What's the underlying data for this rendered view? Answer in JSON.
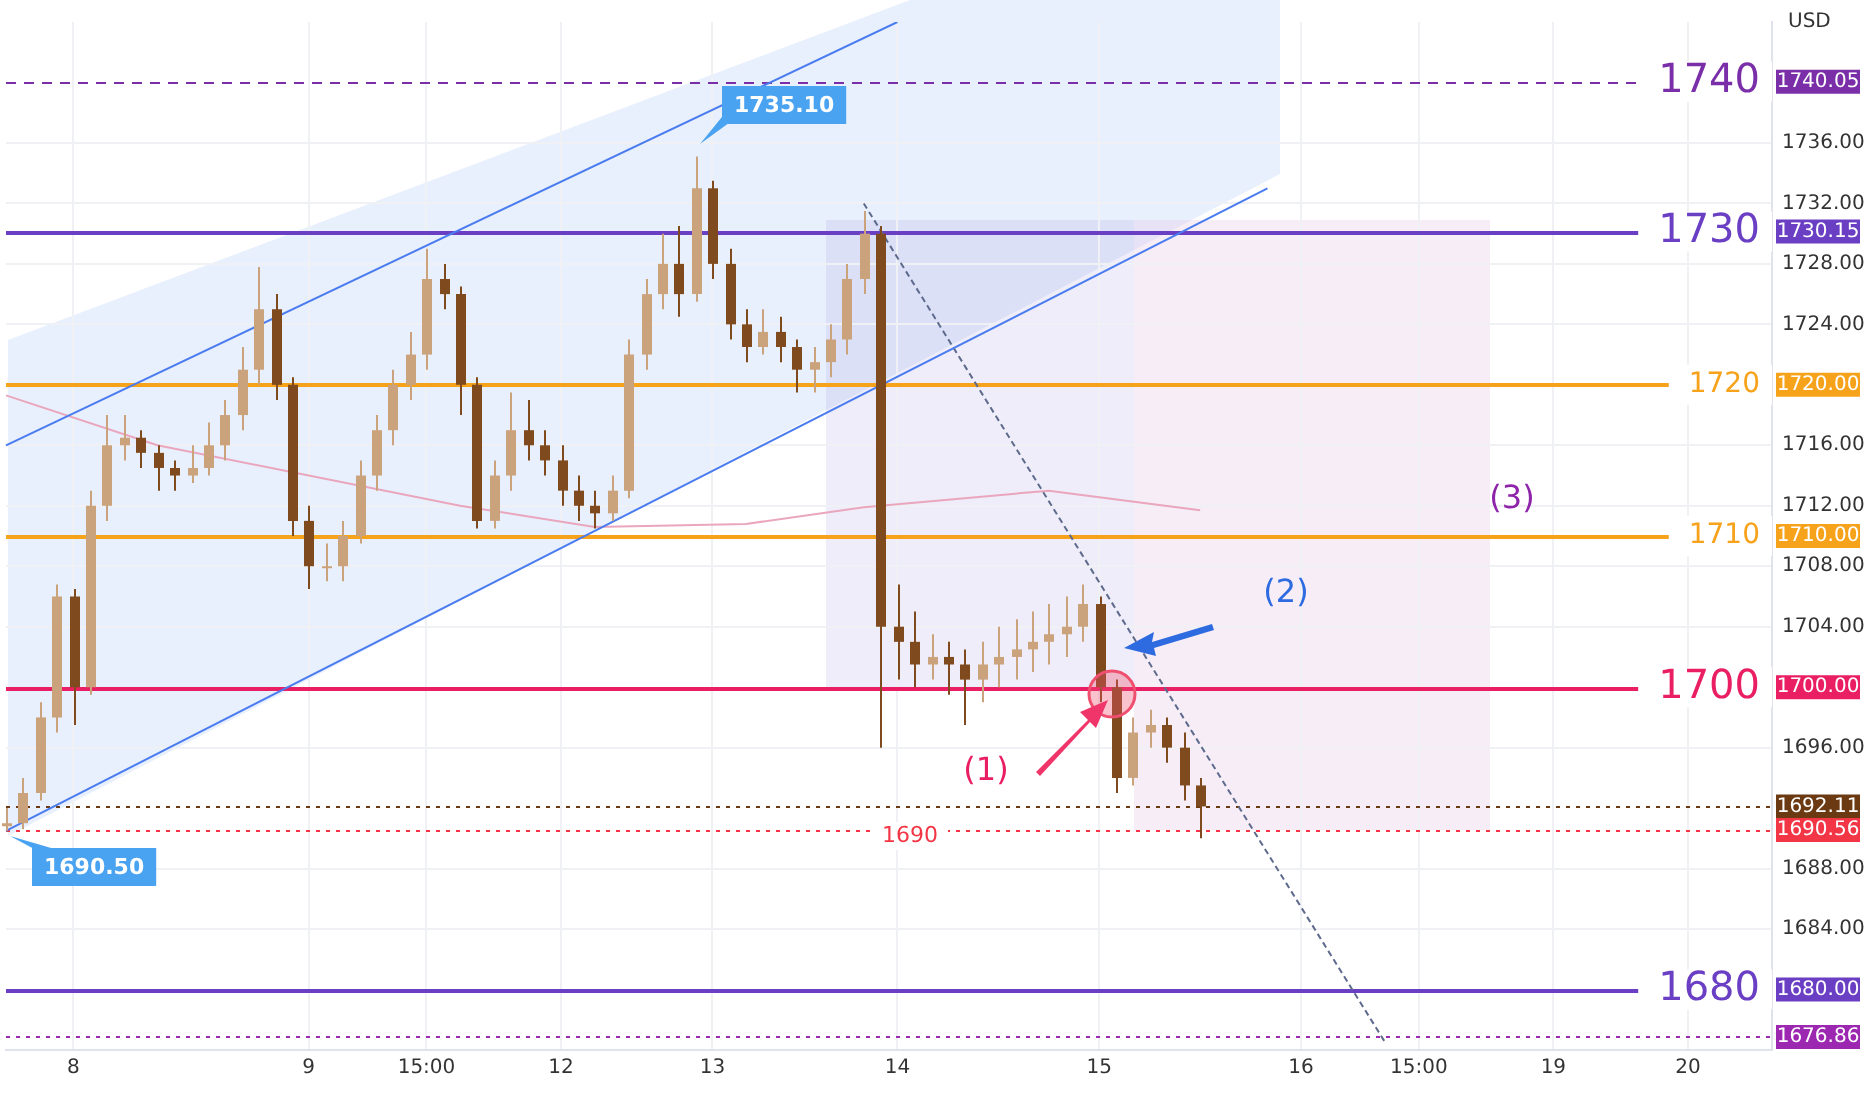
{
  "chart_data": {
    "type": "candlestick",
    "ylabel": "USD",
    "marker": "none",
    "grid": true,
    "colors": [
      "#caa27c",
      "#caa27c",
      "#caa27c",
      "#caa27c",
      "#7f4a1e",
      "#caa27c",
      "#caa27c",
      "#caa27c",
      "#7f4a1e",
      "#7f4a1e",
      "#7f4a1e",
      "#caa27c",
      "#caa27c",
      "#caa27c",
      "#caa27c",
      "#caa27c",
      "#7f4a1e",
      "#7f4a1e",
      "#7f4a1e",
      "#caa27c",
      "#caa27c",
      "#caa27c",
      "#caa27c",
      "#caa27c",
      "#caa27c",
      "#caa27c",
      "#7f4a1e",
      "#7f4a1e",
      "#7f4a1e",
      "#caa27c",
      "#caa27c",
      "#7f4a1e",
      "#7f4a1e",
      "#7f4a1e",
      "#7f4a1e",
      "#7f4a1e",
      "#caa27c",
      "#caa27c",
      "#caa27c",
      "#caa27c",
      "#7f4a1e",
      "#caa27c",
      "#7f4a1e",
      "#7f4a1e",
      "#7f4a1e",
      "#caa27c",
      "#7f4a1e",
      "#7f4a1e",
      "#caa27c",
      "#caa27c",
      "#caa27c",
      "#caa27c",
      "#7f4a1e",
      "#7f4a1e",
      "#7f4a1e",
      "#caa27c",
      "#7f4a1e",
      "#7f4a1e",
      "#caa27c",
      "#caa27c",
      "#caa27c",
      "#caa27c",
      "#caa27c",
      "#caa27c",
      "#caa27c",
      "#7f4a1e",
      "#7f4a1e",
      "#caa27c",
      "#caa27c",
      "#7f4a1e",
      "#7f4a1e",
      "#7f4a1e",
      null,
      null,
      null,
      null,
      null,
      null,
      null,
      null,
      null,
      null,
      null,
      null,
      null,
      null,
      null,
      null,
      null,
      null,
      null,
      null,
      null,
      null,
      null,
      null,
      null,
      null,
      null,
      null,
      null,
      null,
      null,
      null,
      null,
      null
    ],
    "categories": [
      null,
      null,
      null,
      null,
      "8",
      null,
      null,
      null,
      null,
      null,
      null,
      null,
      null,
      null,
      null,
      null,
      null,
      null,
      "9",
      null,
      null,
      null,
      null,
      null,
      null,
      "15:00",
      null,
      null,
      null,
      null,
      null,
      null,
      null,
      "12",
      null,
      null,
      null,
      null,
      null,
      null,
      null,
      null,
      "13",
      null,
      null,
      null,
      null,
      null,
      null,
      null,
      null,
      null,
      null,
      "14",
      null,
      null,
      null,
      null,
      null,
      null,
      null,
      null,
      null,
      null,
      null,
      "15",
      null,
      null,
      null,
      null,
      null,
      null,
      null,
      null,
      null,
      null,
      null,
      "16",
      null,
      null,
      null,
      null,
      null,
      null,
      "15:00",
      null,
      null,
      null,
      null,
      null,
      null,
      null,
      "19",
      null,
      null,
      null,
      null,
      null,
      null,
      null,
      "20",
      null,
      null,
      null,
      null,
      null
    ],
    "ohlc": [
      [
        1690.8,
        1692,
        1690.5,
        1691
      ],
      [
        1691,
        1694,
        1690.6,
        1693
      ],
      [
        1693,
        1699,
        1692.5,
        1698
      ],
      [
        1698,
        1706.8,
        1697,
        1706
      ],
      [
        1706,
        1706.5,
        1697.5,
        1700
      ],
      [
        1700,
        1713,
        1699.5,
        1712
      ],
      [
        1712,
        1718,
        1711,
        1716
      ],
      [
        1716,
        1718,
        1715,
        1716.5
      ],
      [
        1716.5,
        1717,
        1714.5,
        1715.5
      ],
      [
        1715.5,
        1716,
        1713,
        1714.5
      ],
      [
        1714.5,
        1715,
        1713,
        1714
      ],
      [
        1714,
        1716,
        1713.5,
        1714.5
      ],
      [
        1714.5,
        1717.5,
        1714,
        1716
      ],
      [
        1716,
        1719,
        1715,
        1718
      ],
      [
        1718,
        1722.5,
        1717,
        1721
      ],
      [
        1721,
        1727.8,
        1720,
        1725
      ],
      [
        1725,
        1726,
        1719,
        1720
      ],
      [
        1720,
        1720.5,
        1710,
        1711
      ],
      [
        1711,
        1712,
        1706.5,
        1708
      ],
      [
        1708,
        1709.5,
        1707,
        1708
      ],
      [
        1708,
        1711,
        1707,
        1710
      ],
      [
        1710,
        1715,
        1709.5,
        1714
      ],
      [
        1714,
        1718,
        1713,
        1717
      ],
      [
        1717,
        1721,
        1716,
        1720
      ],
      [
        1720,
        1723.5,
        1719,
        1722
      ],
      [
        1722,
        1729,
        1721,
        1727
      ],
      [
        1727,
        1728,
        1725,
        1726
      ],
      [
        1726,
        1726.5,
        1718,
        1720
      ],
      [
        1720,
        1720.5,
        1710.5,
        1711
      ],
      [
        1711,
        1715,
        1710.5,
        1714
      ],
      [
        1714,
        1719.5,
        1713,
        1717
      ],
      [
        1717,
        1719,
        1715,
        1716
      ],
      [
        1716,
        1717,
        1714,
        1715
      ],
      [
        1715,
        1716,
        1712,
        1713
      ],
      [
        1713,
        1714,
        1711,
        1712
      ],
      [
        1712,
        1713,
        1710.5,
        1711.5
      ],
      [
        1711.5,
        1714,
        1711,
        1713
      ],
      [
        1713,
        1723,
        1712.5,
        1722
      ],
      [
        1722,
        1727,
        1721,
        1726
      ],
      [
        1726,
        1730,
        1725,
        1728
      ],
      [
        1728,
        1730.5,
        1724.5,
        1726
      ],
      [
        1726,
        1735.1,
        1725.5,
        1733
      ],
      [
        1733,
        1733.5,
        1727,
        1728
      ],
      [
        1728,
        1729,
        1723,
        1724
      ],
      [
        1724,
        1725,
        1721.5,
        1722.5
      ],
      [
        1722.5,
        1725,
        1722,
        1723.5
      ],
      [
        1723.5,
        1724.5,
        1721.5,
        1722.5
      ],
      [
        1722.5,
        1723,
        1719.5,
        1721
      ],
      [
        1721,
        1722.5,
        1719.5,
        1721.5
      ],
      [
        1721.5,
        1724,
        1720.5,
        1723
      ],
      [
        1723,
        1728,
        1722,
        1727
      ],
      [
        1727,
        1731.5,
        1726,
        1730
      ],
      [
        1730,
        1730.5,
        1696,
        1704
      ],
      [
        1704,
        1706.8,
        1700.5,
        1703
      ],
      [
        1703,
        1705,
        1700,
        1701.5
      ],
      [
        1701.5,
        1703.5,
        1700.5,
        1702
      ],
      [
        1702,
        1703,
        1699.5,
        1701.5
      ],
      [
        1701.5,
        1702.5,
        1697.5,
        1700.5
      ],
      [
        1700.5,
        1703,
        1699,
        1701.5
      ],
      [
        1701.5,
        1704,
        1700,
        1702
      ],
      [
        1702,
        1704.5,
        1700.5,
        1702.5
      ],
      [
        1702.5,
        1705,
        1701,
        1703
      ],
      [
        1703,
        1705.5,
        1701.5,
        1703.5
      ],
      [
        1703.5,
        1706,
        1702,
        1704
      ],
      [
        1704,
        1706.8,
        1703,
        1705.5
      ],
      [
        1705.5,
        1706,
        1699,
        1700
      ],
      [
        1700,
        1700.5,
        1693,
        1694
      ],
      [
        1694,
        1698,
        1693.5,
        1697
      ],
      [
        1697,
        1698.5,
        1696,
        1697.5
      ],
      [
        1697.5,
        1698,
        1695,
        1696
      ],
      [
        1696,
        1697,
        1692.5,
        1693.5
      ],
      [
        1693.5,
        1694,
        1690,
        1692.11
      ],
      null,
      null,
      null,
      null,
      null,
      null,
      null,
      null,
      null,
      null,
      null,
      null,
      null,
      null,
      null,
      null,
      null,
      null,
      null,
      null,
      null,
      null,
      null,
      null,
      null,
      null,
      null,
      null,
      null,
      null,
      null,
      null,
      null,
      null
    ],
    "series": [
      {
        "type": "line",
        "color": "#4a7cf0",
        "values": [
          1716,
          null,
          null,
          null,
          null,
          null,
          null,
          null,
          null,
          null,
          null,
          null,
          null,
          null,
          null,
          null,
          null,
          null,
          null,
          null,
          null,
          null,
          null,
          null,
          null,
          null,
          null,
          null,
          null,
          null,
          null,
          null,
          null,
          null,
          null,
          null,
          null,
          null,
          null,
          null,
          null,
          null,
          null,
          null,
          null,
          null,
          null,
          null,
          null,
          null,
          null,
          null,
          null,
          1744,
          null,
          null,
          null,
          null,
          null,
          null,
          null,
          null,
          null,
          null,
          null,
          null,
          null,
          null,
          null,
          null,
          null,
          null,
          null,
          null,
          null,
          null,
          null,
          null,
          null,
          null,
          null,
          null,
          null,
          null,
          null,
          null,
          null,
          null,
          null,
          null,
          null,
          null,
          null,
          null,
          null,
          null,
          null,
          null,
          null,
          null,
          null,
          null,
          null,
          null,
          null,
          null
        ]
      },
      {
        "type": "line",
        "color": "#4a7cf0",
        "values": [
          1690.5,
          null,
          null,
          null,
          null,
          null,
          null,
          null,
          null,
          null,
          null,
          null,
          null,
          null,
          null,
          null,
          null,
          null,
          null,
          null,
          null,
          null,
          null,
          null,
          null,
          null,
          null,
          null,
          null,
          null,
          null,
          null,
          null,
          null,
          null,
          null,
          null,
          null,
          null,
          null,
          null,
          null,
          null,
          null,
          null,
          null,
          null,
          null,
          null,
          null,
          null,
          null,
          null,
          null,
          null,
          null,
          null,
          null,
          null,
          null,
          null,
          null,
          null,
          null,
          null,
          null,
          null,
          null,
          null,
          null,
          null,
          null,
          null,
          null,
          null,
          1733,
          null,
          null,
          null,
          null,
          null,
          null,
          null,
          null,
          null,
          null,
          null,
          null,
          null,
          null,
          null,
          null,
          null,
          null,
          null,
          null,
          null,
          null,
          null,
          null,
          null,
          null,
          null,
          null,
          null,
          null
        ]
      },
      {
        "type": "line",
        "color": "#5d6a8c",
        "line_style": "dashed",
        "values": [
          null,
          null,
          null,
          null,
          null,
          null,
          null,
          null,
          null,
          null,
          null,
          null,
          null,
          null,
          null,
          null,
          null,
          null,
          null,
          null,
          null,
          null,
          null,
          null,
          null,
          null,
          null,
          null,
          null,
          null,
          null,
          null,
          null,
          null,
          null,
          null,
          null,
          null,
          null,
          null,
          null,
          null,
          null,
          null,
          null,
          null,
          null,
          null,
          null,
          null,
          null,
          1732,
          null,
          null,
          null,
          null,
          null,
          null,
          null,
          null,
          null,
          null,
          null,
          null,
          null,
          null,
          null,
          null,
          null,
          null,
          null,
          null,
          null,
          null,
          null,
          null,
          null,
          null,
          null,
          null,
          null,
          null,
          1676.5,
          null,
          null,
          null,
          null,
          null,
          null,
          null,
          null,
          null,
          null,
          null,
          null,
          null,
          null,
          null,
          null,
          null,
          null,
          null,
          null,
          null,
          null,
          null
        ]
      },
      {
        "type": "line",
        "color": "#eaa6bd",
        "values": [
          1719.3,
          null,
          null,
          null,
          null,
          null,
          null,
          null,
          null,
          1716,
          null,
          null,
          null,
          null,
          null,
          null,
          null,
          null,
          1714,
          null,
          null,
          null,
          null,
          null,
          null,
          null,
          null,
          1712,
          null,
          null,
          null,
          null,
          null,
          null,
          null,
          1710.6,
          null,
          null,
          null,
          null,
          null,
          null,
          null,
          null,
          1710.8,
          null,
          null,
          null,
          null,
          null,
          null,
          1711.9,
          null,
          null,
          null,
          null,
          null,
          null,
          null,
          null,
          null,
          null,
          1713,
          null,
          null,
          null,
          null,
          null,
          null,
          null,
          null,
          1711.7,
          null,
          null,
          null,
          null,
          null,
          null,
          null,
          null,
          null,
          null,
          null,
          null,
          null,
          null,
          null,
          null,
          null,
          null,
          null,
          null,
          null,
          null,
          null,
          null,
          null,
          null,
          null,
          null,
          null,
          null,
          null,
          null,
          null,
          null
        ]
      }
    ],
    "ylim": [
      1676,
      1744
    ],
    "yticks": [
      {
        "value": 1684,
        "label": "1684.00"
      },
      {
        "value": 1688,
        "label": "1688.00"
      },
      {
        "value": 1696,
        "label": "1696.00"
      },
      {
        "value": 1704,
        "label": "1704.00"
      },
      {
        "value": 1708,
        "label": "1708.00"
      },
      {
        "value": 1712,
        "label": "1712.00"
      },
      {
        "value": 1716,
        "label": "1716.00"
      },
      {
        "value": 1724,
        "label": "1724.00"
      },
      {
        "value": 1728,
        "label": "1728.00"
      },
      {
        "value": 1732,
        "label": "1732.00"
      },
      {
        "value": 1736,
        "label": "1736.00"
      }
    ],
    "ref_lines": [
      {
        "axis": "y",
        "value": 1740.05,
        "label": "1740.05",
        "color": "#7a2fa8",
        "line_style": "dashed"
      },
      {
        "axis": "y",
        "value": 1730.15,
        "label": "1730.15",
        "color": "#6b3fc4",
        "line_style": "solid"
      },
      {
        "axis": "y",
        "value": 1720,
        "label": "1720.00",
        "color": "#f7a21b",
        "line_style": "solid"
      },
      {
        "axis": "y",
        "value": 1710,
        "label": "1710.00",
        "color": "#f7a21b",
        "line_style": "solid"
      },
      {
        "axis": "y",
        "value": 1700,
        "label": "1700.00",
        "color": "#e91e63",
        "line_style": "solid"
      },
      {
        "axis": "y",
        "value": 1692.11,
        "label": "1692.11",
        "color": "#6b3a12",
        "line_style": "dotted"
      },
      {
        "axis": "y",
        "value": 1690.56,
        "label": "1690.56",
        "color": "#f23645",
        "line_style": "dotted"
      },
      {
        "axis": "y",
        "value": 1680,
        "label": "1680.00",
        "color": "#6b3fc4",
        "line_style": "solid"
      },
      {
        "axis": "y",
        "value": 1676.86,
        "label": "1676.86",
        "color": "#9c27b0",
        "line_style": "dotted"
      }
    ],
    "annotations": [
      {
        "text": "1740",
        "y": 1740.05
      },
      {
        "text": "1730",
        "y": 1730.15
      },
      {
        "text": "1720",
        "y": 1720
      },
      {
        "text": "1710",
        "y": 1710
      },
      {
        "text": "1700",
        "y": 1700
      },
      {
        "text": "1680",
        "y": 1680
      },
      "1735.10",
      "1690.50",
      "(1)",
      "(2)",
      "(3)",
      "1690"
    ]
  }
}
